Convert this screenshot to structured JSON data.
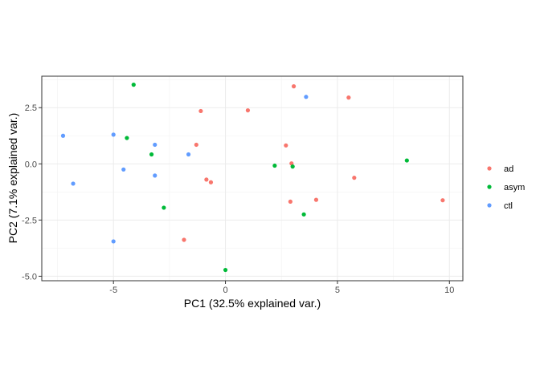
{
  "chart_data": {
    "type": "scatter",
    "title": "",
    "xlabel": "PC1 (32.5% explained var.)",
    "ylabel": "PC2 (7.1% explained var.)",
    "xlim": [
      -8.2,
      10.6
    ],
    "ylim": [
      -5.2,
      3.9
    ],
    "x_ticks": [
      -5,
      0,
      5,
      10
    ],
    "x_tick_labels": [
      "-5",
      "0",
      "5",
      "10"
    ],
    "y_ticks": [
      2.5,
      0.0,
      -2.5,
      -5.0
    ],
    "y_tick_labels": [
      "2.5",
      "0.0",
      "-2.5",
      "-5.0"
    ],
    "grid": true,
    "legend_position": "right",
    "series": [
      {
        "name": "ad",
        "color": "#F8766D",
        "points": [
          {
            "x": 3.05,
            "y": 3.45
          },
          {
            "x": 5.5,
            "y": 2.95
          },
          {
            "x": -1.1,
            "y": 2.35
          },
          {
            "x": 1.0,
            "y": 2.38
          },
          {
            "x": -1.3,
            "y": 0.85
          },
          {
            "x": 2.7,
            "y": 0.82
          },
          {
            "x": 2.95,
            "y": 0.02
          },
          {
            "x": -0.85,
            "y": -0.7
          },
          {
            "x": -0.65,
            "y": -0.82
          },
          {
            "x": 5.75,
            "y": -0.62
          },
          {
            "x": 2.9,
            "y": -1.68
          },
          {
            "x": 4.05,
            "y": -1.6
          },
          {
            "x": 9.7,
            "y": -1.62
          },
          {
            "x": -1.85,
            "y": -3.38
          }
        ]
      },
      {
        "name": "asym",
        "color": "#00BA38",
        "points": [
          {
            "x": -4.1,
            "y": 3.52
          },
          {
            "x": -4.4,
            "y": 1.15
          },
          {
            "x": -3.3,
            "y": 0.42
          },
          {
            "x": 2.2,
            "y": -0.08
          },
          {
            "x": 3.0,
            "y": -0.12
          },
          {
            "x": 8.1,
            "y": 0.15
          },
          {
            "x": -2.75,
            "y": -1.95
          },
          {
            "x": 3.5,
            "y": -2.25
          },
          {
            "x": 0.0,
            "y": -4.72
          }
        ]
      },
      {
        "name": "ctl",
        "color": "#619CFF",
        "points": [
          {
            "x": 3.6,
            "y": 2.98
          },
          {
            "x": -7.25,
            "y": 1.25
          },
          {
            "x": -5.0,
            "y": 1.3
          },
          {
            "x": -3.15,
            "y": 0.85
          },
          {
            "x": -1.65,
            "y": 0.42
          },
          {
            "x": -4.55,
            "y": -0.25
          },
          {
            "x": -3.15,
            "y": -0.52
          },
          {
            "x": -6.8,
            "y": -0.88
          },
          {
            "x": -5.0,
            "y": -3.45
          }
        ]
      }
    ]
  }
}
